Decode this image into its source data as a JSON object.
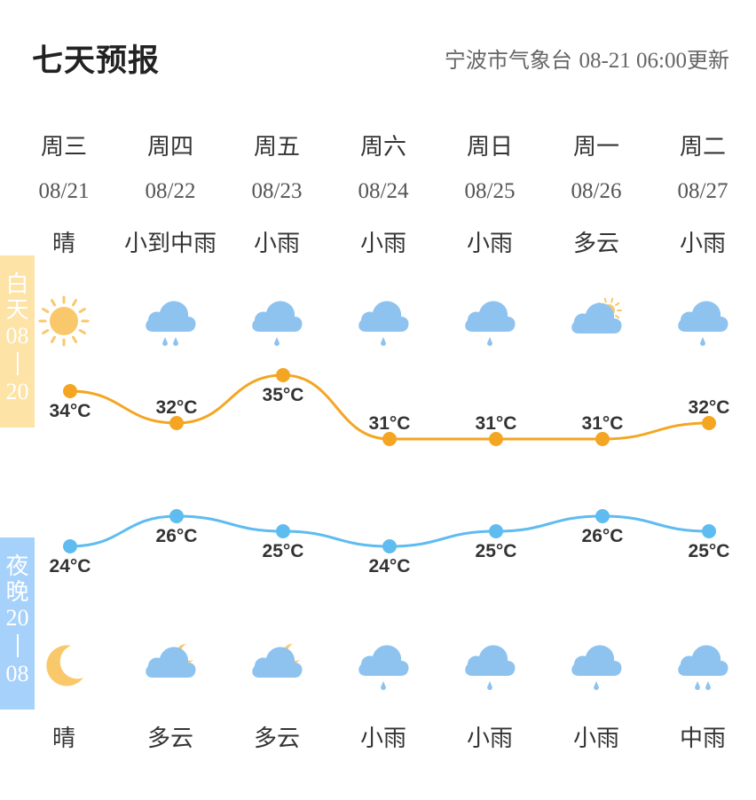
{
  "header": {
    "title": "七天预报",
    "source": "宁波市气象台",
    "update_time": "08-21 06:00",
    "update_suffix": "更新"
  },
  "side_labels": {
    "day_chars": [
      "白",
      "天",
      "08",
      "20"
    ],
    "night_chars": [
      "夜",
      "晚",
      "20",
      "08"
    ]
  },
  "colors": {
    "day_line": "#f4a622",
    "night_line": "#5ebcf0",
    "day_panel": "#fde3a5",
    "night_panel": "#a6d1fb",
    "cloud": "#8ec3ef",
    "sun": "#f9c86a"
  },
  "days": [
    {
      "dow": "周三",
      "date": "08/21",
      "day_cond": "晴",
      "night_cond": "晴",
      "day_icon": "sun-icon",
      "night_icon": "moon-icon",
      "high": "34°C",
      "low": "24°C"
    },
    {
      "dow": "周四",
      "date": "08/22",
      "day_cond": "小到中雨",
      "night_cond": "多云",
      "day_icon": "moderate-rain-icon",
      "night_icon": "cloudy-night-icon",
      "high": "32°C",
      "low": "26°C"
    },
    {
      "dow": "周五",
      "date": "08/23",
      "day_cond": "小雨",
      "night_cond": "多云",
      "day_icon": "light-rain-icon",
      "night_icon": "cloudy-night-icon",
      "high": "35°C",
      "low": "25°C"
    },
    {
      "dow": "周六",
      "date": "08/24",
      "day_cond": "小雨",
      "night_cond": "小雨",
      "day_icon": "light-rain-icon",
      "night_icon": "light-rain-icon",
      "high": "31°C",
      "low": "24°C"
    },
    {
      "dow": "周日",
      "date": "08/25",
      "day_cond": "小雨",
      "night_cond": "小雨",
      "day_icon": "light-rain-icon",
      "night_icon": "light-rain-icon",
      "high": "31°C",
      "low": "25°C"
    },
    {
      "dow": "周一",
      "date": "08/26",
      "day_cond": "多云",
      "night_cond": "小雨",
      "day_icon": "cloudy-day-icon",
      "night_icon": "light-rain-icon",
      "high": "31°C",
      "low": "26°C"
    },
    {
      "dow": "周二",
      "date": "08/27",
      "day_cond": "小雨",
      "night_cond": "中雨",
      "day_icon": "light-rain-icon",
      "night_icon": "moderate-rain-icon",
      "high": "32°C",
      "low": "25°C"
    }
  ],
  "chart_data": {
    "type": "line",
    "categories": [
      "08/21",
      "08/22",
      "08/23",
      "08/24",
      "08/25",
      "08/26",
      "08/27"
    ],
    "series": [
      {
        "values": [
          34,
          32,
          35,
          31,
          31,
          31,
          32
        ]
      },
      {
        "values": [
          24,
          26,
          25,
          24,
          25,
          26,
          25
        ]
      }
    ],
    "unit": "°C"
  }
}
